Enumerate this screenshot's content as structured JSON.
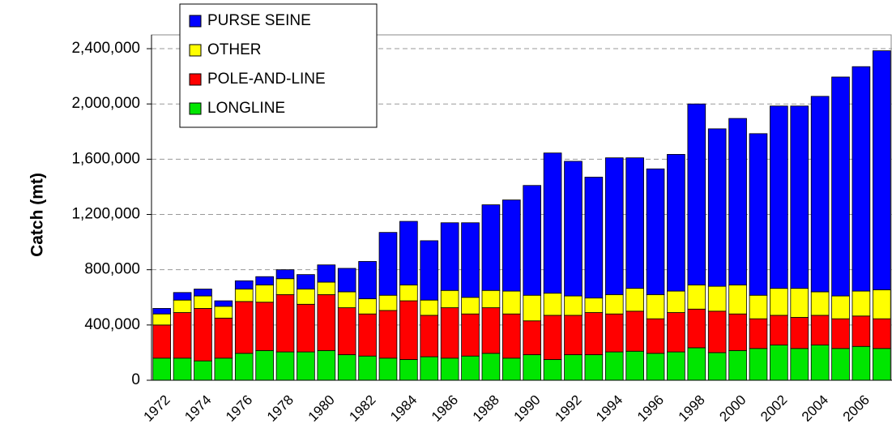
{
  "chart_data": {
    "type": "stacked_bar",
    "y_label": "Catch (mt)",
    "categories": [
      "1972",
      null,
      "1974",
      null,
      "1976",
      null,
      "1978",
      null,
      "1980",
      null,
      "1982",
      null,
      "1984",
      null,
      "1986",
      null,
      "1988",
      null,
      "1990",
      null,
      "1992",
      null,
      "1994",
      null,
      "1996",
      null,
      "1998",
      null,
      "2000",
      null,
      "2002",
      null,
      "2004",
      null,
      "2006",
      null
    ],
    "series": [
      {
        "name": "PURSE SEINE",
        "color": "#0000ff",
        "values": [
          40000,
          55000,
          50000,
          40000,
          60000,
          60000,
          65000,
          105000,
          125000,
          170000,
          270000,
          455000,
          460000,
          430000,
          490000,
          540000,
          620000,
          660000,
          795000,
          1015000,
          975000,
          875000,
          990000,
          945000,
          910000,
          990000,
          1310000,
          1140000,
          1205000,
          1170000,
          1320000,
          1320000,
          1415000,
          1585000,
          1625000,
          1730000
        ]
      },
      {
        "name": "OTHER",
        "color": "#ffff00",
        "values": [
          80000,
          90000,
          90000,
          85000,
          90000,
          125000,
          115000,
          110000,
          90000,
          115000,
          110000,
          110000,
          115000,
          110000,
          125000,
          120000,
          125000,
          165000,
          185000,
          160000,
          140000,
          105000,
          140000,
          165000,
          175000,
          155000,
          175000,
          180000,
          210000,
          170000,
          195000,
          210000,
          170000,
          165000,
          180000,
          210000
        ]
      },
      {
        "name": "POLE-AND-LINE",
        "color": "#ff0000",
        "values": [
          240000,
          330000,
          380000,
          290000,
          375000,
          350000,
          415000,
          345000,
          405000,
          340000,
          305000,
          345000,
          425000,
          300000,
          365000,
          305000,
          330000,
          320000,
          245000,
          320000,
          285000,
          305000,
          275000,
          290000,
          250000,
          285000,
          280000,
          300000,
          265000,
          215000,
          215000,
          225000,
          215000,
          215000,
          220000,
          215000
        ]
      },
      {
        "name": "LONGLINE",
        "color": "#00e600",
        "values": [
          160000,
          160000,
          140000,
          160000,
          195000,
          215000,
          205000,
          205000,
          215000,
          185000,
          175000,
          160000,
          150000,
          170000,
          160000,
          175000,
          195000,
          160000,
          185000,
          150000,
          185000,
          185000,
          205000,
          210000,
          195000,
          205000,
          235000,
          200000,
          215000,
          230000,
          255000,
          230000,
          255000,
          230000,
          245000,
          230000
        ]
      }
    ],
    "ylim": [
      0,
      2500000
    ],
    "yticks": [
      0,
      {
        "value": 400000,
        "label": "400,000"
      },
      {
        "value": 800000,
        "label": "800,000"
      },
      {
        "value": 1200000,
        "label": "1,200,000"
      },
      {
        "value": 1600000,
        "label": "1,600,000"
      },
      {
        "value": 2000000,
        "label": "2,000,000"
      },
      {
        "value": 2400000,
        "label": "2,400,000"
      }
    ],
    "grid": true
  }
}
